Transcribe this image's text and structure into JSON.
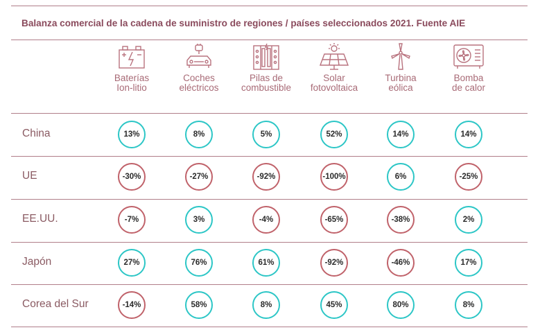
{
  "title": "Balanza comercial de la cadena de suministro de regiones / países seleccionados 2021. Fuente AIE",
  "colors": {
    "positive": "#2cc6c6",
    "negative": "#c0626a",
    "accent": "#8a4a5c"
  },
  "columns": [
    {
      "line1": "Baterías",
      "line2": "Ion-litio",
      "icon": "battery-icon"
    },
    {
      "line1": "Coches",
      "line2": "eléctricos",
      "icon": "electric-car-icon"
    },
    {
      "line1": "Pilas de",
      "line2": "combustible",
      "icon": "fuel-cell-icon"
    },
    {
      "line1": "Solar",
      "line2": "fotovoltaica",
      "icon": "solar-panel-icon"
    },
    {
      "line1": "Turbina",
      "line2": "eólica",
      "icon": "wind-turbine-icon"
    },
    {
      "line1": "Bomba",
      "line2": "de calor",
      "icon": "heat-pump-icon"
    }
  ],
  "rows": [
    {
      "label": "China",
      "values": [
        "13%",
        "8%",
        "5%",
        "52%",
        "14%",
        "14%"
      ]
    },
    {
      "label": "UE",
      "values": [
        "-30%",
        "-27%",
        "-92%",
        "-100%",
        "6%",
        "-25%"
      ]
    },
    {
      "label": "EE.UU.",
      "values": [
        "-7%",
        "3%",
        "-4%",
        "-65%",
        "-38%",
        "2%"
      ]
    },
    {
      "label": "Japón",
      "values": [
        "27%",
        "76%",
        "61%",
        "-92%",
        "-46%",
        "17%"
      ]
    },
    {
      "label": "Corea del Sur",
      "values": [
        "-14%",
        "58%",
        "8%",
        "45%",
        "80%",
        "8%"
      ]
    }
  ],
  "chart_data": {
    "type": "table",
    "title": "Balanza comercial de la cadena de suministro de regiones / países seleccionados 2021. Fuente AIE",
    "categories": [
      "Baterías Ion-litio",
      "Coches eléctricos",
      "Pilas de combustible",
      "Solar fotovoltaica",
      "Turbina eólica",
      "Bomba de calor"
    ],
    "series": [
      {
        "name": "China",
        "values": [
          13,
          8,
          5,
          52,
          14,
          14
        ]
      },
      {
        "name": "UE",
        "values": [
          -30,
          -27,
          -92,
          -100,
          6,
          -25
        ]
      },
      {
        "name": "EE.UU.",
        "values": [
          -7,
          3,
          -4,
          -65,
          -38,
          2
        ]
      },
      {
        "name": "Japón",
        "values": [
          27,
          76,
          61,
          -92,
          -46,
          17
        ]
      },
      {
        "name": "Corea del Sur",
        "values": [
          -14,
          58,
          8,
          45,
          80,
          8
        ]
      }
    ]
  }
}
